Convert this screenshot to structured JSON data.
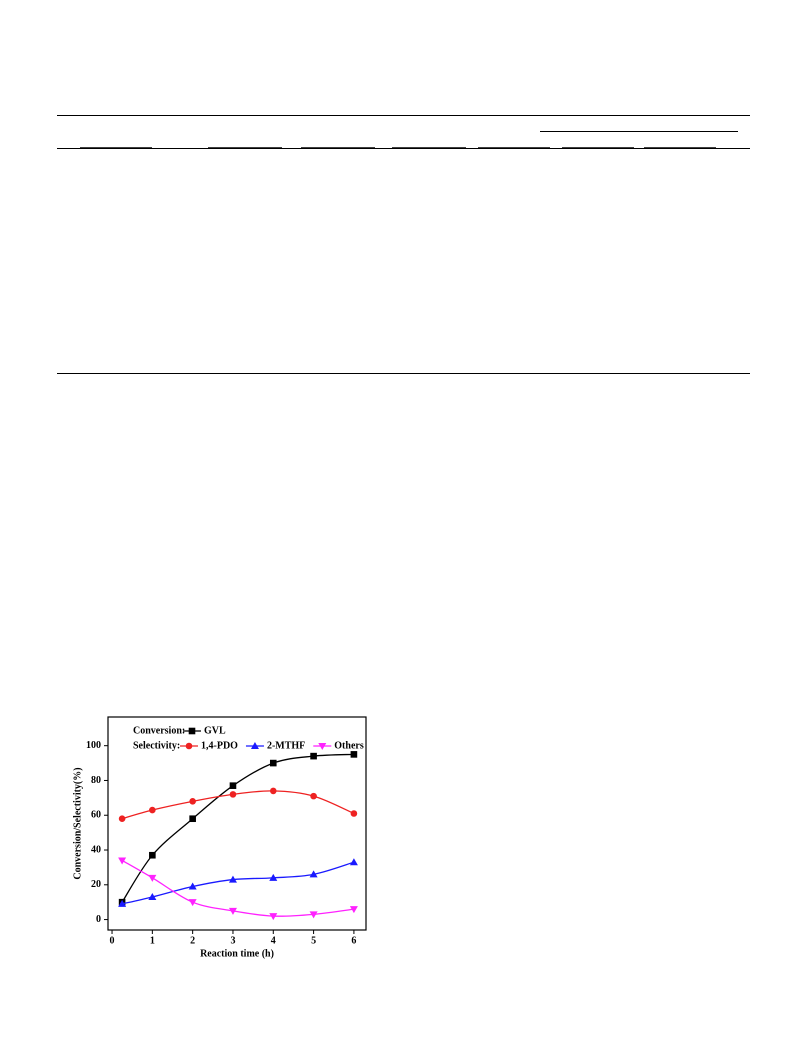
{
  "chart_data": {
    "type": "line",
    "x_label": "Reaction time (h)",
    "y_label": "Conversion/Selectivity(%)",
    "x": [
      0.25,
      1,
      2,
      3,
      4,
      5,
      6
    ],
    "legend_labels": [
      "Conversion:",
      "Selectivity:"
    ],
    "series": [
      {
        "name": "GVL",
        "color": "#000000",
        "marker": "square",
        "legend_row": 0,
        "values": [
          10,
          37,
          58,
          77,
          90,
          94,
          95
        ]
      },
      {
        "name": "1,4-PDO",
        "color": "#ee2222",
        "marker": "circle",
        "legend_row": 1,
        "values": [
          58,
          63,
          68,
          72,
          74,
          71,
          61
        ]
      },
      {
        "name": "2-MTHF",
        "color": "#1a1aff",
        "marker": "triangle-up",
        "legend_row": 1,
        "values": [
          9,
          13,
          19,
          23,
          24,
          26,
          33
        ]
      },
      {
        "name": "Others",
        "color": "#ff22ff",
        "marker": "triangle-down",
        "legend_row": 1,
        "values": [
          34,
          24,
          10,
          5,
          2,
          3,
          6
        ]
      }
    ],
    "xlim": [
      -0.1,
      6.3
    ],
    "xticks": [
      0,
      1,
      2,
      3,
      4,
      5,
      6
    ],
    "ylim": [
      -6,
      116.5
    ],
    "yticks": [
      0,
      20,
      40,
      60,
      80,
      100
    ]
  }
}
